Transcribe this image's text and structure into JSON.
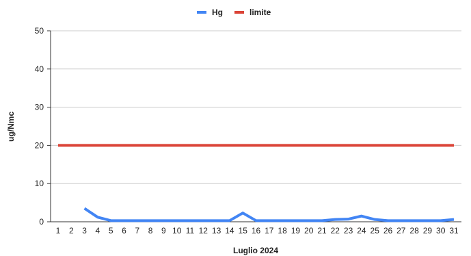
{
  "chart_data": {
    "type": "line",
    "title": "",
    "xlabel": "Luglio 2024",
    "ylabel": "ug/Nmc",
    "ylim": [
      0,
      50
    ],
    "yticks": [
      0,
      10,
      20,
      30,
      40,
      50
    ],
    "grid": true,
    "legend_position": "top",
    "x": [
      1,
      2,
      3,
      4,
      5,
      6,
      7,
      8,
      9,
      10,
      11,
      12,
      13,
      14,
      15,
      16,
      17,
      18,
      19,
      20,
      21,
      22,
      23,
      24,
      25,
      26,
      27,
      28,
      29,
      30,
      31
    ],
    "series": [
      {
        "name": "Hg",
        "color": "#4285f4",
        "values": [
          null,
          null,
          3.5,
          1.2,
          0.3,
          0.3,
          0.3,
          0.3,
          0.3,
          0.3,
          0.3,
          0.3,
          0.3,
          0.3,
          2.3,
          0.3,
          0.3,
          0.3,
          0.3,
          0.3,
          0.3,
          0.6,
          0.7,
          1.5,
          0.6,
          0.3,
          0.3,
          0.3,
          0.3,
          0.3,
          0.6
        ]
      },
      {
        "name": "limite",
        "color": "#db4437",
        "values": [
          20,
          20,
          20,
          20,
          20,
          20,
          20,
          20,
          20,
          20,
          20,
          20,
          20,
          20,
          20,
          20,
          20,
          20,
          20,
          20,
          20,
          20,
          20,
          20,
          20,
          20,
          20,
          20,
          20,
          20,
          20
        ]
      }
    ]
  }
}
